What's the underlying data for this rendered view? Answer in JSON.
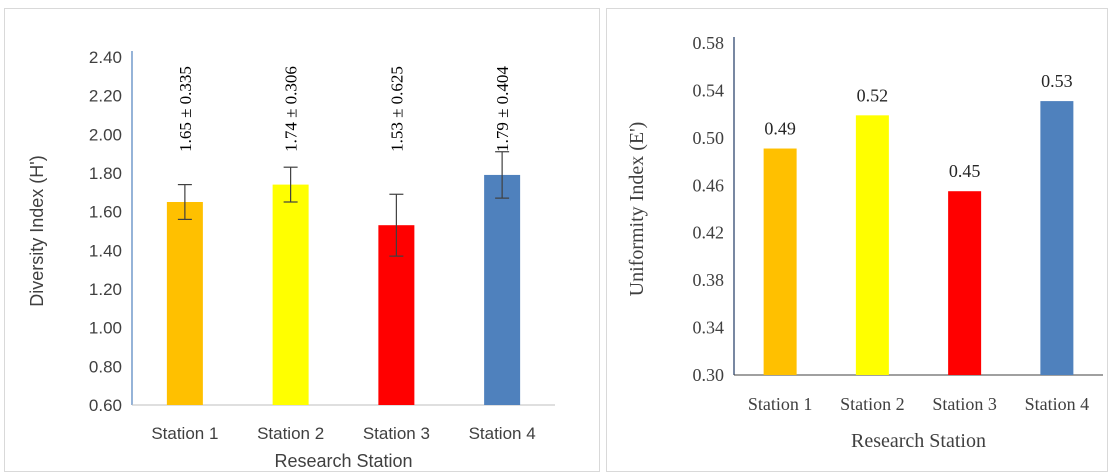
{
  "chart_data": [
    {
      "type": "bar",
      "categories": [
        "Station 1",
        "Station 2",
        "Station 3",
        "Station 4"
      ],
      "values": [
        1.65,
        1.74,
        1.53,
        1.79
      ],
      "error_bars": [
        0.09,
        0.09,
        0.16,
        0.12
      ],
      "data_labels": [
        "1.65 ± 0.335",
        "1.74 ± 0.306",
        "1.53 ± 0.625",
        "1.79 ± 0.404"
      ],
      "colors": [
        "#FFC000",
        "#FFFF00",
        "#FF0000",
        "#4F81BD"
      ],
      "xlabel": "Research Station",
      "ylabel": "Diversity Index (H')",
      "ylim": [
        0.6,
        2.4
      ],
      "yticks": [
        "0.60",
        "0.80",
        "1.00",
        "1.20",
        "1.40",
        "1.60",
        "1.80",
        "2.00",
        "2.20",
        "2.40"
      ],
      "grid": false
    },
    {
      "type": "bar",
      "categories": [
        "Station 1",
        "Station 2",
        "Station 3",
        "Station 4"
      ],
      "values": [
        0.49,
        0.52,
        0.45,
        0.53
      ],
      "plotted_values": [
        0.491,
        0.519,
        0.455,
        0.531
      ],
      "data_labels": [
        "0.49",
        "0.52",
        "0.45",
        "0.53"
      ],
      "colors": [
        "#FFC000",
        "#FFFF00",
        "#FF0000",
        "#4F81BD"
      ],
      "xlabel": "Research Station",
      "ylabel": "Uniformity Index (E')",
      "ylim": [
        0.3,
        0.58
      ],
      "yticks": [
        "0.30",
        "0.34",
        "0.38",
        "0.42",
        "0.46",
        "0.50",
        "0.54",
        "0.58"
      ],
      "grid": false
    }
  ]
}
